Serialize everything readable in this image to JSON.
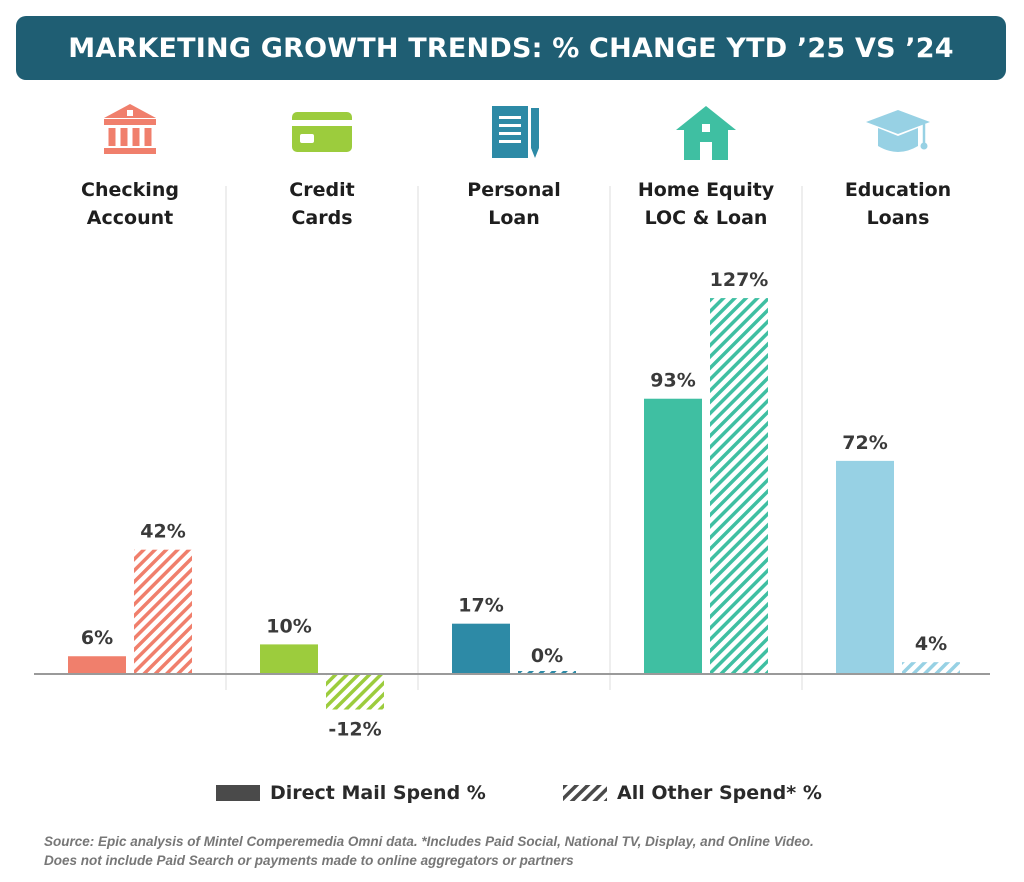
{
  "colors": {
    "banner": "#1f5e73",
    "axis": "#9a9a9a",
    "divider": "#dcdcdc",
    "legend_swatch": "#4a4a4a"
  },
  "header": {
    "title": "MARKETING GROWTH TRENDS: % CHANGE YTD ’25 VS ’24"
  },
  "chart_data": {
    "type": "bar",
    "categories": [
      {
        "lines": [
          "Checking",
          "Account"
        ],
        "icon": "bank-icon",
        "color": "#f07f6c"
      },
      {
        "lines": [
          "Credit",
          "Cards"
        ],
        "icon": "credit-card-icon",
        "color": "#9ccc3d"
      },
      {
        "lines": [
          "Personal",
          "Loan"
        ],
        "icon": "document-pen-icon",
        "color": "#2d8aa6"
      },
      {
        "lines": [
          "Home Equity",
          "LOC & Loan"
        ],
        "icon": "house-icon",
        "color": "#3fbfa2"
      },
      {
        "lines": [
          "Education",
          "Loans"
        ],
        "icon": "graduation-cap-icon",
        "color": "#97d1e4"
      }
    ],
    "series": [
      {
        "name": "Direct Mail Spend %",
        "pattern": "solid",
        "values": [
          6,
          10,
          17,
          93,
          72
        ],
        "labels": [
          "6%",
          "10%",
          "17%",
          "93%",
          "72%"
        ]
      },
      {
        "name": "All Other Spend* %",
        "pattern": "hatched",
        "values": [
          42,
          -12,
          0,
          127,
          4
        ],
        "labels": [
          "42%",
          "-12%",
          "0%",
          "127%",
          "4%"
        ]
      }
    ],
    "ylim": [
      -14,
      130
    ],
    "legend_position": "bottom",
    "grid": false
  },
  "legend": {
    "direct_mail": "Direct Mail Spend %",
    "all_other": "All Other Spend* %"
  },
  "footer": {
    "source_line1": "Source: Epic analysis of Mintel Comperemedia Omni data. *Includes Paid Social, National TV, Display, and Online Video.",
    "source_line2": "Does not include Paid Search or payments made to online aggregators or partners"
  }
}
